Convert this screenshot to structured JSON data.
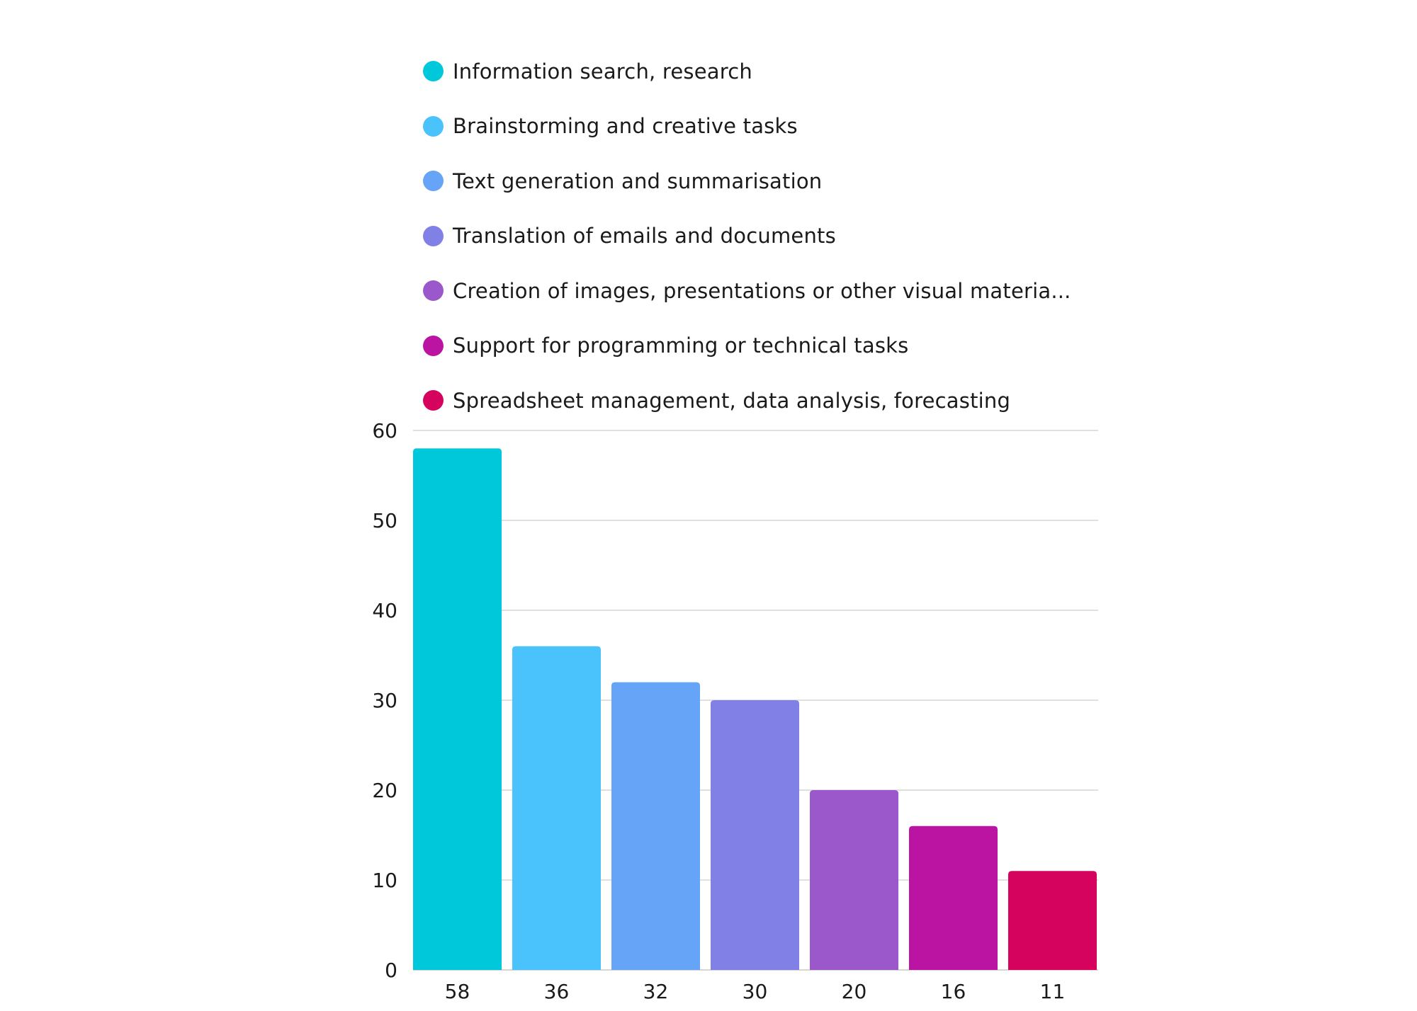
{
  "chart_data": {
    "type": "bar",
    "categories": [
      "58",
      "36",
      "32",
      "30",
      "20",
      "16",
      "11"
    ],
    "series": [
      {
        "name": "Information search, research",
        "value": 58,
        "color": "#00C8DB"
      },
      {
        "name": "Brainstorming and creative tasks",
        "value": 36,
        "color": "#4AC2FC"
      },
      {
        "name": "Text generation and summarisation",
        "value": 32,
        "color": "#66A4F8"
      },
      {
        "name": "Translation of emails and documents",
        "value": 30,
        "color": "#8080E6"
      },
      {
        "name": "Creation of images, presentations or other visual materia...",
        "value": 20,
        "color": "#9A58CB"
      },
      {
        "name": "Support for programming or technical tasks",
        "value": 16,
        "color": "#BB14A3"
      },
      {
        "name": "Spreadsheet management, data analysis, forecasting",
        "value": 11,
        "color": "#D5025E"
      }
    ],
    "values": [
      58,
      36,
      32,
      30,
      20,
      16,
      11
    ],
    "yticks": [
      0,
      10,
      20,
      30,
      40,
      50,
      60
    ],
    "ylim": [
      0,
      60
    ],
    "grid": true,
    "legend_position": "top",
    "title": "",
    "xlabel": "",
    "ylabel": ""
  }
}
